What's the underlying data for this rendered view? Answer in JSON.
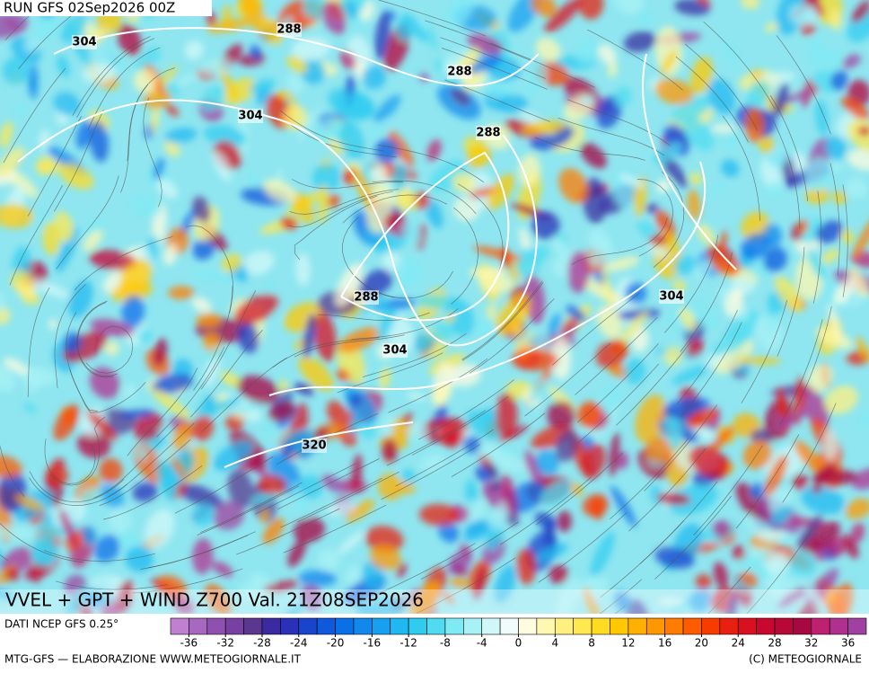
{
  "header": {
    "run": "RUN GFS 02Sep2026 00Z"
  },
  "map": {
    "contour_labels": [
      304,
      288,
      288,
      304,
      288,
      288,
      304,
      304,
      320
    ],
    "title": "VVEL + GPT + WIND Z700 Val. 21Z08SEP2026"
  },
  "footer": {
    "source": "DATI NCEP GFS 0.25°",
    "credit": "MTG-GFS — ELABORAZIONE WWW.METEOGIORNALE.IT",
    "copyright": "(C) METEOGIORNALE"
  },
  "colorbar": {
    "lim": [
      -38,
      38
    ],
    "ticks": [
      -36,
      -32,
      -28,
      -24,
      -20,
      -16,
      -12,
      -8,
      -4,
      0,
      4,
      8,
      12,
      16,
      20,
      24,
      28,
      32,
      36
    ],
    "colors": [
      "#c080d0",
      "#a868c0",
      "#9050b0",
      "#7840a0",
      "#5a3890",
      "#3a2ca0",
      "#2a30b8",
      "#1a44cc",
      "#1058dc",
      "#0a70e8",
      "#1088ec",
      "#18a0f0",
      "#20b8f0",
      "#30ccf0",
      "#50dcf0",
      "#80eaf4",
      "#a8f2f6",
      "#d0f8f8",
      "#f0fcfc",
      "#fffce0",
      "#fff8b0",
      "#fff080",
      "#ffe850",
      "#ffdc20",
      "#ffc800",
      "#ffb000",
      "#ff9800",
      "#ff7c00",
      "#ff5c00",
      "#f83c00",
      "#e82010",
      "#d81020",
      "#c80830",
      "#b80838",
      "#a80840",
      "#c02070",
      "#b03090",
      "#a040a0"
    ]
  }
}
